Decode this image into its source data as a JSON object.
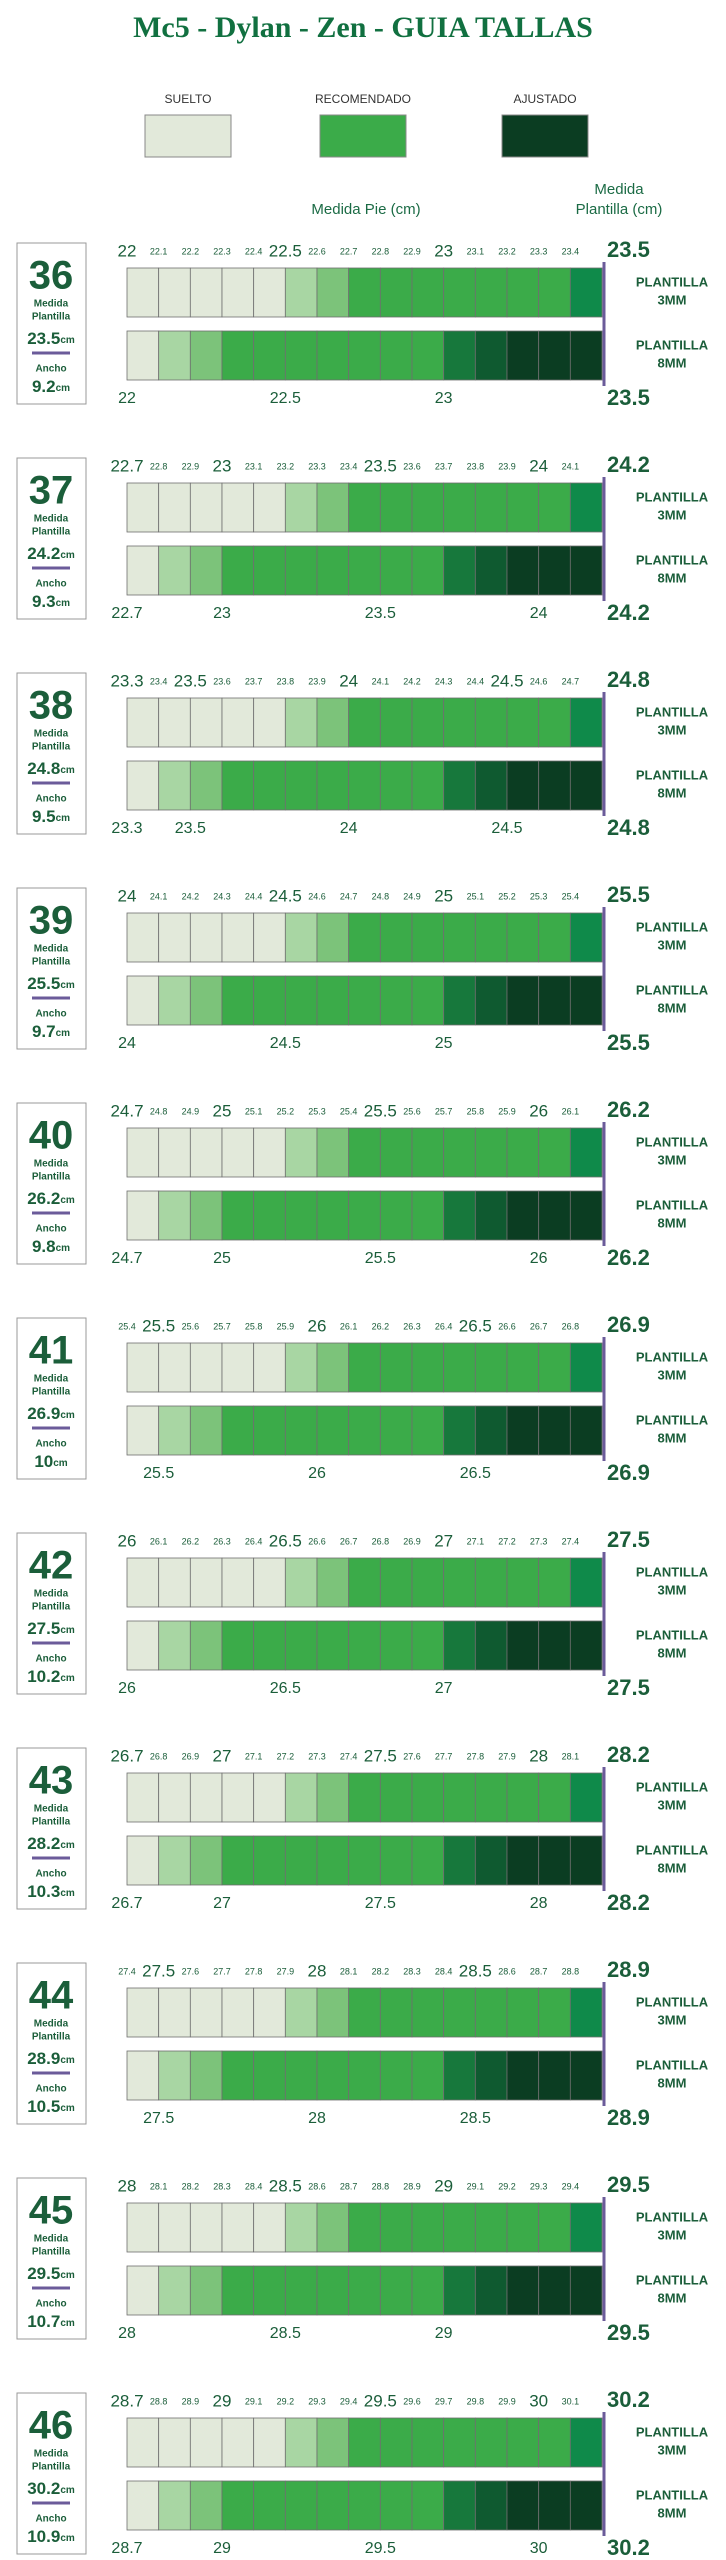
{
  "title": "Mc5 - Dylan - Zen - GUIA TALLAS",
  "legend": [
    {
      "name": "SUELTO",
      "color": "#e2e9da"
    },
    {
      "name": "RECOMENDADO",
      "color": "#3bab49"
    },
    {
      "name": "AJUSTADO",
      "color": "#0b3d22"
    }
  ],
  "header": {
    "foot": "Medida Pie (cm)",
    "insole": [
      "Medida",
      "Plantilla (cm)"
    ]
  },
  "box_labels": {
    "insole": [
      "Medida",
      "Plantilla"
    ],
    "width": "Ancho",
    "unit": "cm"
  },
  "rows": [
    [
      "PLANTILLA",
      "3MM"
    ],
    [
      "PLANTILLA",
      "8MM"
    ]
  ],
  "patterns": [
    [
      "#e2e9da",
      "#e2e9da",
      "#e2e9da",
      "#e2e9da",
      "#e2e9da",
      "#a8d6a3",
      "#7cc37a",
      "#3bab49",
      "#3bab49",
      "#3bab49",
      "#3bab49",
      "#3bab49",
      "#3bab49",
      "#3bab49",
      "#0f8a4a"
    ],
    [
      "#e2e9da",
      "#a8d6a3",
      "#7cc37a",
      "#3bab49",
      "#3bab49",
      "#3bab49",
      "#3bab49",
      "#3bab49",
      "#3bab49",
      "#3bab49",
      "#17783c",
      "#0f5a30",
      "#0b3d22",
      "#0b3d22",
      "#0b3d22"
    ]
  ],
  "sizes": [
    {
      "size": 36,
      "insole": 23.5,
      "width": 9.2,
      "ticks": [
        22,
        22.1,
        22.2,
        22.3,
        22.4,
        22.5,
        22.6,
        22.7,
        22.8,
        22.9,
        23,
        23.1,
        23.2,
        23.3,
        23.4
      ],
      "bottom_ticks": [
        22,
        22.5,
        23
      ]
    },
    {
      "size": 37,
      "insole": 24.2,
      "width": 9.3,
      "ticks": [
        22.7,
        22.8,
        22.9,
        23,
        23.1,
        23.2,
        23.3,
        23.4,
        23.5,
        23.6,
        23.7,
        23.8,
        23.9,
        24,
        24.1
      ],
      "bottom_ticks": [
        22.7,
        23,
        23.5,
        24
      ]
    },
    {
      "size": 38,
      "insole": 24.8,
      "width": 9.5,
      "ticks": [
        23.3,
        23.4,
        23.5,
        23.6,
        23.7,
        23.8,
        23.9,
        24,
        24.1,
        24.2,
        24.3,
        24.4,
        24.5,
        24.6,
        24.7
      ],
      "bottom_ticks": [
        23.3,
        23.5,
        24,
        24.5
      ]
    },
    {
      "size": 39,
      "insole": 25.5,
      "width": 9.7,
      "ticks": [
        24,
        24.1,
        24.2,
        24.3,
        24.4,
        24.5,
        24.6,
        24.7,
        24.8,
        24.9,
        25,
        25.1,
        25.2,
        25.3,
        25.4
      ],
      "bottom_ticks": [
        24,
        24.5,
        25
      ]
    },
    {
      "size": 40,
      "insole": 26.2,
      "width": 9.8,
      "ticks": [
        24.7,
        24.8,
        24.9,
        25,
        25.1,
        25.2,
        25.3,
        25.4,
        25.5,
        25.6,
        25.7,
        25.8,
        25.9,
        26,
        26.1
      ],
      "bottom_ticks": [
        24.7,
        25,
        25.5,
        26
      ]
    },
    {
      "size": 41,
      "insole": 26.9,
      "width": 10,
      "ticks": [
        25.4,
        25.5,
        25.6,
        25.7,
        25.8,
        25.9,
        26,
        26.1,
        26.2,
        26.3,
        26.4,
        26.5,
        26.6,
        26.7,
        26.8
      ],
      "bottom_ticks": [
        25.5,
        26,
        26.5
      ]
    },
    {
      "size": 42,
      "insole": 27.5,
      "width": 10.2,
      "ticks": [
        26,
        26.1,
        26.2,
        26.3,
        26.4,
        26.5,
        26.6,
        26.7,
        26.8,
        26.9,
        27,
        27.1,
        27.2,
        27.3,
        27.4
      ],
      "bottom_ticks": [
        26,
        26.5,
        27
      ]
    },
    {
      "size": 43,
      "insole": 28.2,
      "width": 10.3,
      "ticks": [
        26.7,
        26.8,
        26.9,
        27,
        27.1,
        27.2,
        27.3,
        27.4,
        27.5,
        27.6,
        27.7,
        27.8,
        27.9,
        28,
        28.1
      ],
      "bottom_ticks": [
        26.7,
        27,
        27.5,
        28
      ]
    },
    {
      "size": 44,
      "insole": 28.9,
      "width": 10.5,
      "ticks": [
        27.4,
        27.5,
        27.6,
        27.7,
        27.8,
        27.9,
        28,
        28.1,
        28.2,
        28.3,
        28.4,
        28.5,
        28.6,
        28.7,
        28.8
      ],
      "bottom_ticks": [
        27.5,
        28,
        28.5
      ]
    },
    {
      "size": 45,
      "insole": 29.5,
      "width": 10.7,
      "ticks": [
        28,
        28.1,
        28.2,
        28.3,
        28.4,
        28.5,
        28.6,
        28.7,
        28.8,
        28.9,
        29,
        29.1,
        29.2,
        29.3,
        29.4
      ],
      "bottom_ticks": [
        28,
        28.5,
        29
      ]
    },
    {
      "size": 46,
      "insole": 30.2,
      "width": 10.9,
      "ticks": [
        28.7,
        28.8,
        28.9,
        29,
        29.1,
        29.2,
        29.3,
        29.4,
        29.5,
        29.6,
        29.7,
        29.8,
        29.9,
        30,
        30.1
      ],
      "bottom_ticks": [
        28.7,
        29,
        29.5,
        30
      ]
    }
  ]
}
